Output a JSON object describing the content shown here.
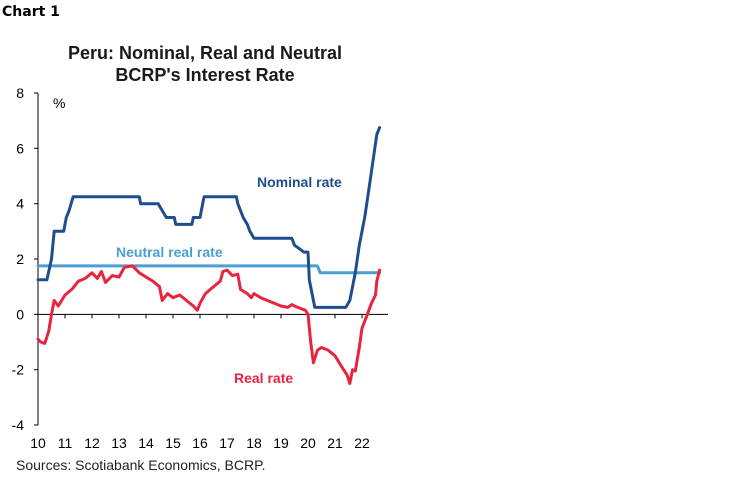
{
  "header": {
    "chart_number": "Chart 1",
    "title_line1": "Peru: Nominal, Real and Neutral",
    "title_line2": "BCRP's Interest Rate",
    "source": "Sources: Scotiabank Economics, BCRP."
  },
  "colors": {
    "nominal": "#1F4E8C",
    "real": "#E8253F",
    "neutral": "#4A9FD4",
    "axis": "#000000"
  },
  "chart_data": {
    "type": "line",
    "title": "Peru: Nominal, Real and Neutral BCRP's Interest Rate",
    "xlabel": "",
    "ylabel": "%",
    "ylim": [
      -4,
      8
    ],
    "xlim": [
      2010,
      2022.9
    ],
    "y_ticks": [
      "-4",
      "-2",
      "0",
      "2",
      "4",
      "6",
      "8"
    ],
    "x_tick_labels": [
      "10",
      "11",
      "12",
      "13",
      "14",
      "15",
      "16",
      "17",
      "18",
      "19",
      "20",
      "21",
      "22"
    ],
    "grid": false,
    "series": [
      {
        "name": "Nominal rate",
        "key": "nominal",
        "points": [
          [
            2010.0,
            1.25
          ],
          [
            2010.33,
            1.25
          ],
          [
            2010.5,
            2.0
          ],
          [
            2010.6,
            3.0
          ],
          [
            2010.95,
            3.0
          ],
          [
            2011.05,
            3.5
          ],
          [
            2011.15,
            3.75
          ],
          [
            2011.3,
            4.25
          ],
          [
            2013.75,
            4.25
          ],
          [
            2013.8,
            4.0
          ],
          [
            2014.45,
            4.0
          ],
          [
            2014.6,
            3.75
          ],
          [
            2014.75,
            3.5
          ],
          [
            2015.05,
            3.5
          ],
          [
            2015.1,
            3.25
          ],
          [
            2015.7,
            3.25
          ],
          [
            2015.75,
            3.5
          ],
          [
            2016.0,
            3.5
          ],
          [
            2016.1,
            4.0
          ],
          [
            2016.15,
            4.25
          ],
          [
            2017.35,
            4.25
          ],
          [
            2017.4,
            4.0
          ],
          [
            2017.5,
            3.75
          ],
          [
            2017.6,
            3.5
          ],
          [
            2017.75,
            3.25
          ],
          [
            2017.85,
            3.0
          ],
          [
            2018.0,
            2.75
          ],
          [
            2019.4,
            2.75
          ],
          [
            2019.5,
            2.5
          ],
          [
            2019.85,
            2.25
          ],
          [
            2020.0,
            2.25
          ],
          [
            2020.05,
            1.25
          ],
          [
            2020.25,
            0.25
          ],
          [
            2021.4,
            0.25
          ],
          [
            2021.55,
            0.5
          ],
          [
            2021.75,
            1.5
          ],
          [
            2021.9,
            2.5
          ],
          [
            2022.1,
            3.5
          ],
          [
            2022.25,
            4.5
          ],
          [
            2022.4,
            5.5
          ],
          [
            2022.55,
            6.5
          ],
          [
            2022.65,
            6.75
          ]
        ]
      },
      {
        "name": "Real rate",
        "key": "real",
        "points": [
          [
            2010.0,
            -0.9
          ],
          [
            2010.1,
            -1.0
          ],
          [
            2010.25,
            -1.05
          ],
          [
            2010.4,
            -0.6
          ],
          [
            2010.5,
            0.0
          ],
          [
            2010.6,
            0.5
          ],
          [
            2010.75,
            0.3
          ],
          [
            2011.0,
            0.7
          ],
          [
            2011.25,
            0.9
          ],
          [
            2011.5,
            1.2
          ],
          [
            2011.75,
            1.3
          ],
          [
            2012.0,
            1.5
          ],
          [
            2012.2,
            1.3
          ],
          [
            2012.35,
            1.55
          ],
          [
            2012.5,
            1.15
          ],
          [
            2012.75,
            1.4
          ],
          [
            2013.0,
            1.35
          ],
          [
            2013.2,
            1.7
          ],
          [
            2013.5,
            1.75
          ],
          [
            2013.75,
            1.5
          ],
          [
            2014.0,
            1.35
          ],
          [
            2014.25,
            1.2
          ],
          [
            2014.5,
            1.0
          ],
          [
            2014.6,
            0.5
          ],
          [
            2014.8,
            0.75
          ],
          [
            2015.0,
            0.6
          ],
          [
            2015.25,
            0.7
          ],
          [
            2015.5,
            0.5
          ],
          [
            2015.75,
            0.3
          ],
          [
            2015.9,
            0.15
          ],
          [
            2016.0,
            0.4
          ],
          [
            2016.2,
            0.75
          ],
          [
            2016.5,
            1.0
          ],
          [
            2016.75,
            1.2
          ],
          [
            2016.85,
            1.55
          ],
          [
            2017.0,
            1.6
          ],
          [
            2017.2,
            1.4
          ],
          [
            2017.4,
            1.45
          ],
          [
            2017.5,
            0.9
          ],
          [
            2017.75,
            0.75
          ],
          [
            2017.9,
            0.6
          ],
          [
            2018.0,
            0.75
          ],
          [
            2018.25,
            0.6
          ],
          [
            2018.5,
            0.5
          ],
          [
            2018.75,
            0.4
          ],
          [
            2019.0,
            0.3
          ],
          [
            2019.25,
            0.25
          ],
          [
            2019.4,
            0.35
          ],
          [
            2019.5,
            0.3
          ],
          [
            2019.75,
            0.2
          ],
          [
            2019.9,
            0.15
          ],
          [
            2020.0,
            0.0
          ],
          [
            2020.1,
            -1.0
          ],
          [
            2020.2,
            -1.75
          ],
          [
            2020.35,
            -1.3
          ],
          [
            2020.5,
            -1.2
          ],
          [
            2020.75,
            -1.3
          ],
          [
            2021.0,
            -1.5
          ],
          [
            2021.25,
            -1.9
          ],
          [
            2021.45,
            -2.2
          ],
          [
            2021.55,
            -2.5
          ],
          [
            2021.65,
            -2.0
          ],
          [
            2021.75,
            -2.05
          ],
          [
            2021.9,
            -1.2
          ],
          [
            2022.0,
            -0.5
          ],
          [
            2022.2,
            0.0
          ],
          [
            2022.35,
            0.4
          ],
          [
            2022.5,
            0.7
          ],
          [
            2022.55,
            1.2
          ],
          [
            2022.65,
            1.6
          ]
        ]
      },
      {
        "name": "Neutral real rate",
        "key": "neutral",
        "points": [
          [
            2010.0,
            1.75
          ],
          [
            2020.35,
            1.75
          ],
          [
            2020.45,
            1.5
          ],
          [
            2022.65,
            1.5
          ]
        ]
      }
    ],
    "annotations": [
      {
        "text": "Nominal rate",
        "series": "nominal"
      },
      {
        "text": "Neutral real rate",
        "series": "neutral"
      },
      {
        "text": "Real rate",
        "series": "real"
      }
    ]
  }
}
